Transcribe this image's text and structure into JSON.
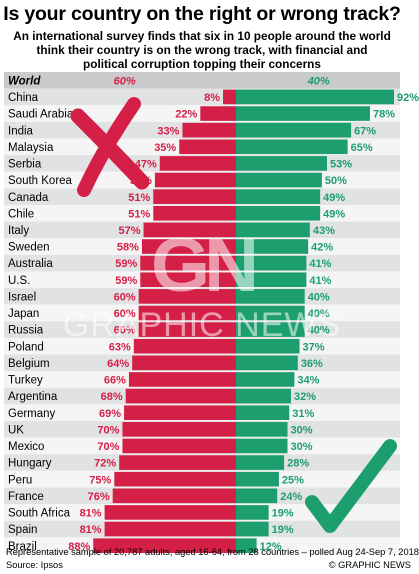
{
  "title": "Is your country on the right or wrong track?",
  "subtitle_lines": [
    "An international survey finds that six in 10 people around the world",
    "think their country is on the wrong track, with financial and",
    "political corruption topping their concerns"
  ],
  "chart_data": {
    "type": "bar",
    "orientation": "diverging-horizontal",
    "title": "Is your country on the right or wrong track?",
    "categories": [
      "World",
      "China",
      "Saudi Arabia",
      "India",
      "Malaysia",
      "Serbia",
      "South Korea",
      "Canada",
      "Chile",
      "Italy",
      "Sweden",
      "Australia",
      "U.S.",
      "Israel",
      "Japan",
      "Russia",
      "Poland",
      "Belgium",
      "Turkey",
      "Argentina",
      "Germany",
      "UK",
      "Mexico",
      "Hungary",
      "Peru",
      "France",
      "South Africa",
      "Spain",
      "Brazil"
    ],
    "series": [
      {
        "values": [
          60,
          8,
          22,
          33,
          35,
          47,
          50,
          51,
          51,
          57,
          58,
          59,
          59,
          60,
          60,
          60,
          63,
          64,
          66,
          68,
          69,
          70,
          70,
          72,
          75,
          76,
          81,
          81,
          88
        ],
        "color": "#d41f46",
        "icon": "cross-icon"
      },
      {
        "values": [
          40,
          92,
          78,
          67,
          65,
          53,
          50,
          49,
          49,
          43,
          42,
          41,
          41,
          40,
          40,
          40,
          37,
          36,
          34,
          32,
          31,
          30,
          30,
          28,
          25,
          24,
          19,
          19,
          12
        ],
        "color": "#1c9e6e",
        "icon": "checkmark-icon"
      }
    ],
    "value_suffix": "%",
    "xlim": [
      0,
      100
    ]
  },
  "colors": {
    "wrong": "#d41f46",
    "right": "#1c9e6e",
    "row_dark": "#e1e2e3",
    "row_light": "#f5f5f5",
    "world_row": "#c9cacb"
  },
  "footnote": "Representative sample of 20,787 adults, aged 16-64, from 28 countries – polled Aug 24-Sep 7, 2018",
  "source": "Source: Ipsos",
  "credit": "© GRAPHIC NEWS",
  "watermark": {
    "logo": "GN",
    "text": "GRAPHIC NEWS"
  }
}
